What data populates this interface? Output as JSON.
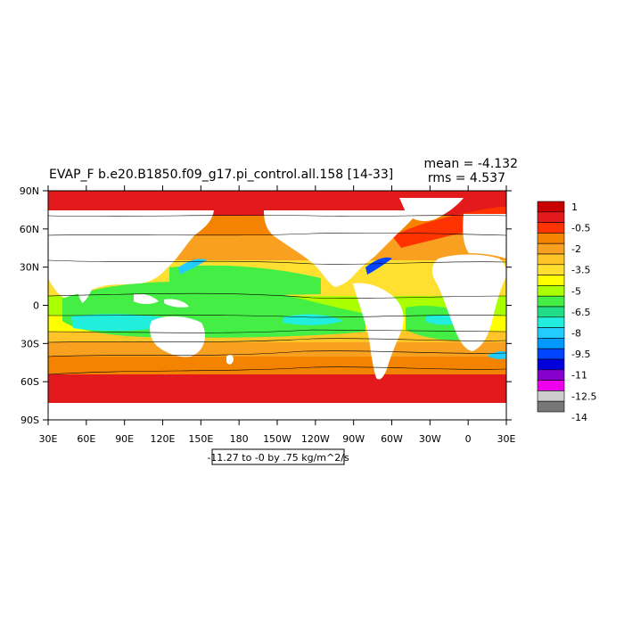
{
  "chart_data": {
    "type": "heatmap",
    "title": "EVAP_F b.e20.B1850.f09_g17.pi_control.all.158 [14-33]",
    "stats": {
      "mean_text": "mean = -4.132",
      "rms_text": "rms = 4.537",
      "mean": -4.132,
      "rms": 4.537
    },
    "contour_info": "-11.27 to -0 by .75 kg/m^2/s",
    "units": "kg/m^2/s",
    "x_ticks": [
      "30E",
      "60E",
      "90E",
      "120E",
      "150E",
      "180",
      "150W",
      "120W",
      "90W",
      "60W",
      "30W",
      "0",
      "30E"
    ],
    "y_ticks": [
      "90N",
      "60N",
      "30N",
      "0",
      "30S",
      "60S",
      "90S"
    ],
    "xlim": [
      30,
      390
    ],
    "ylim": [
      -90,
      90
    ],
    "colorbar": {
      "labels": [
        "1",
        "-0.5",
        "-2",
        "-3.5",
        "-5",
        "-6.5",
        "-8",
        "-9.5",
        "-11",
        "-12.5",
        "-14"
      ],
      "colors": [
        "#c80000",
        "#e31a1c",
        "#ff3300",
        "#f48400",
        "#f9a020",
        "#ffc428",
        "#ffe030",
        "#ffff00",
        "#aaff00",
        "#44ee44",
        "#22dd88",
        "#22eedd",
        "#22ccff",
        "#0099ff",
        "#0044ff",
        "#0000dd",
        "#8800cc",
        "#ee00ee",
        "#cccccc",
        "#777777"
      ]
    },
    "grid": false
  }
}
